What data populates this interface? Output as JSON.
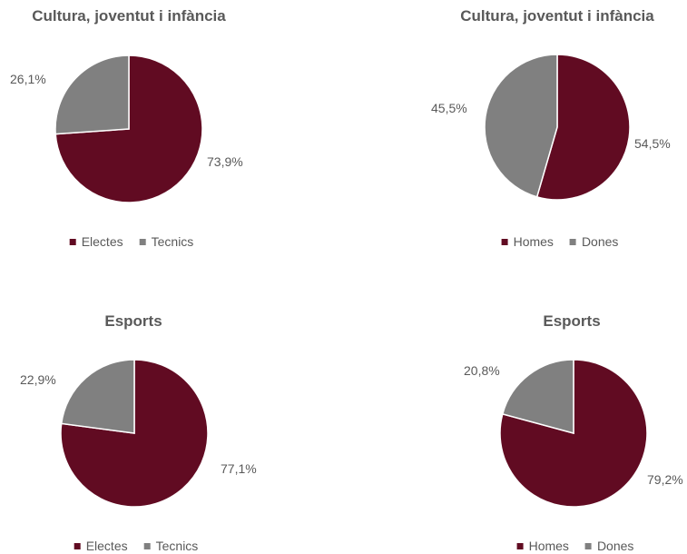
{
  "colors": {
    "primary": "#610b22",
    "secondary": "#808080"
  },
  "chart_data": [
    {
      "type": "pie",
      "title": "Cultura, joventut i infància",
      "categories": [
        "Electes",
        "Tecnics"
      ],
      "values": [
        73.9,
        26.1
      ],
      "labels": [
        "73,9%",
        "26,1%"
      ],
      "legend_position": "bottom"
    },
    {
      "type": "pie",
      "title": "Cultura, joventut i infància",
      "categories": [
        "Homes",
        "Dones"
      ],
      "values": [
        54.5,
        45.5
      ],
      "labels": [
        "54,5%",
        "45,5%"
      ],
      "legend_position": "bottom"
    },
    {
      "type": "pie",
      "title": "Esports",
      "categories": [
        "Electes",
        "Tecnics"
      ],
      "values": [
        77.1,
        22.9
      ],
      "labels": [
        "77,1%",
        "22,9%"
      ],
      "legend_position": "bottom"
    },
    {
      "type": "pie",
      "title": "Esports",
      "categories": [
        "Homes",
        "Dones"
      ],
      "values": [
        79.2,
        20.8
      ],
      "labels": [
        "79,2%",
        "20,8%"
      ],
      "legend_position": "bottom"
    }
  ]
}
